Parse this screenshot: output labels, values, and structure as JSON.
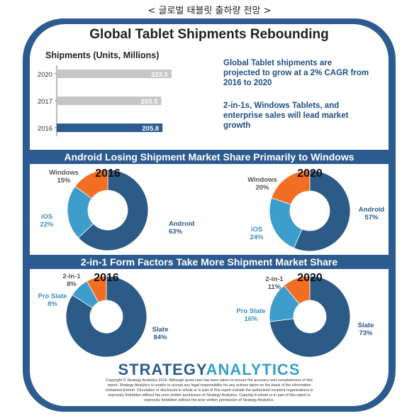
{
  "caption": "< 글로벌 태블릿 출하량 전망 >",
  "title": "Global Tablet Shipments Rebounding",
  "colors": {
    "frame": "#2c5c8f",
    "bar_highlight": "#2c5c8f",
    "bar_other": "#c6c6c6",
    "android": "#2b5b86",
    "ios": "#3d9dcc",
    "windows": "#f26e22"
  },
  "notes": [
    [
      "Global Tablet shipments are",
      "projected to grow at a 2% CAGR from",
      "2016 to 2020"
    ],
    [
      "2-in-1s, Windows Tablets, and",
      "enterprise sales will lead market",
      "growth"
    ]
  ],
  "section_titles": [
    "Android Losing Shipment Market Share Primarily to Windows",
    "2-in-1 Form Factors Take More Shipment Market Share"
  ],
  "chart_data": [
    {
      "type": "bar",
      "title": "Shipments (Units, Millions)",
      "categories": [
        "2020",
        "2017",
        "2016"
      ],
      "values": [
        223.5,
        203.5,
        205.8
      ],
      "value_labels": [
        "223.5",
        "203.5",
        "205.8"
      ]
    },
    {
      "type": "pie",
      "title": "2016",
      "labels": [
        "Android",
        "iOS",
        "Windows"
      ],
      "values": [
        63,
        22,
        15
      ],
      "value_labels": [
        "63%",
        "22%",
        "15%"
      ]
    },
    {
      "type": "pie",
      "title": "2020",
      "labels": [
        "Android",
        "iOS",
        "Windows"
      ],
      "values": [
        57,
        24,
        20
      ],
      "value_labels": [
        "57%",
        "24%",
        "20%"
      ]
    },
    {
      "type": "pie",
      "title": "2016",
      "labels": [
        "Slate",
        "Pro Slate",
        "2-in-1"
      ],
      "values": [
        84,
        8,
        8
      ],
      "value_labels": [
        "84%",
        "8%",
        "8%"
      ]
    },
    {
      "type": "pie",
      "title": "2020",
      "labels": [
        "Slate",
        "Pro Slate",
        "2-in-1"
      ],
      "values": [
        73,
        16,
        11
      ],
      "value_labels": [
        "73%",
        "16%",
        "11%"
      ]
    }
  ],
  "logo": {
    "part1": "STRATEGY",
    "part2": "ANALYTICS"
  },
  "copyright": [
    "Copyright © Strategy Analytics 2016. Although great care has been taken to ensure the accuracy and completeness of this",
    "report, Strategy Analytics is unable to accept any legal responsibility for any actions taken on the basis of the information",
    "contained therein. Circulation or disclosure in whole or in part of this report outside the authorised recipient organisations is",
    "expressly forbidden without the prior written permission of Strategy Analytics. Copying in whole or in part of this report is",
    "expressly forbidden without the prior written permission of Strategy Analytics."
  ]
}
